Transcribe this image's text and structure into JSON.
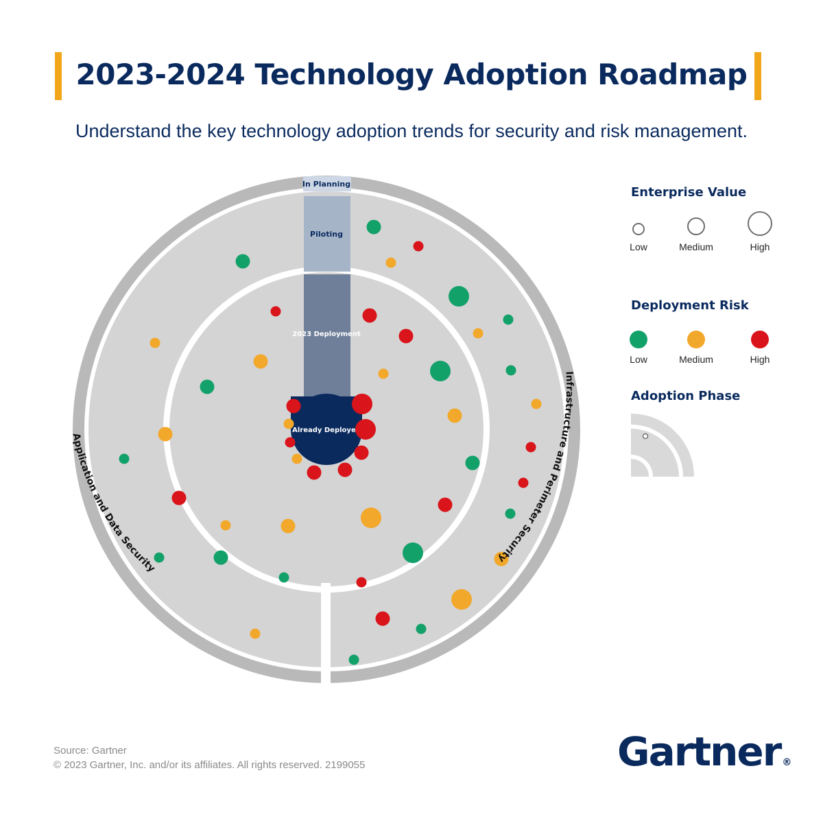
{
  "header": {
    "title": "2023-2024 Technology Adoption Roadmap",
    "subtitle": "Understand the key technology adoption trends for security and risk management."
  },
  "diagram": {
    "phases": {
      "in_planning": "In Planning",
      "piloting": "Piloting",
      "deployment_2023": "2023 Deployment",
      "already_deployed": "Already Deployed"
    },
    "segments": {
      "left": "Application and Data Security",
      "right": "Infrastructure and Perimeter Security"
    },
    "colors": {
      "low_risk": "#13a16a",
      "medium_risk": "#f2a82a",
      "high_risk": "#d9141a",
      "ring_gray": "#b9b9b9",
      "band_fill": "#d4d4d4",
      "piloting_fill": "#a6b4c8",
      "deployment_fill": "#6f7f9a",
      "deployed_fill": "#0a2a5e"
    },
    "markers": [
      {
        "phase": "planning",
        "side": "right",
        "risk": "low",
        "value": "medium"
      },
      {
        "phase": "planning",
        "side": "right",
        "risk": "high",
        "value": "low"
      },
      {
        "phase": "planning",
        "side": "right",
        "risk": "medium",
        "value": "low"
      },
      {
        "phase": "planning",
        "side": "right",
        "risk": "low",
        "value": "high"
      },
      {
        "phase": "planning",
        "side": "right",
        "risk": "low",
        "value": "low"
      },
      {
        "phase": "planning",
        "side": "right",
        "risk": "medium",
        "value": "low"
      },
      {
        "phase": "planning",
        "side": "right",
        "risk": "low",
        "value": "low"
      },
      {
        "phase": "planning",
        "side": "right",
        "risk": "medium",
        "value": "low"
      },
      {
        "phase": "planning",
        "side": "right",
        "risk": "high",
        "value": "low"
      },
      {
        "phase": "planning",
        "side": "right",
        "risk": "high",
        "value": "low"
      },
      {
        "phase": "planning",
        "side": "right",
        "risk": "low",
        "value": "low"
      },
      {
        "phase": "planning",
        "side": "right",
        "risk": "medium",
        "value": "medium"
      },
      {
        "phase": "planning",
        "side": "right",
        "risk": "medium",
        "value": "high"
      },
      {
        "phase": "planning",
        "side": "right",
        "risk": "high",
        "value": "medium"
      },
      {
        "phase": "planning",
        "side": "right",
        "risk": "low",
        "value": "low"
      },
      {
        "phase": "planning",
        "side": "right",
        "risk": "low",
        "value": "low"
      },
      {
        "phase": "planning",
        "side": "left",
        "risk": "low",
        "value": "medium"
      },
      {
        "phase": "planning",
        "side": "left",
        "risk": "medium",
        "value": "low"
      },
      {
        "phase": "planning",
        "side": "left",
        "risk": "medium",
        "value": "medium"
      },
      {
        "phase": "planning",
        "side": "left",
        "risk": "low",
        "value": "low"
      },
      {
        "phase": "planning",
        "side": "left",
        "risk": "high",
        "value": "medium"
      },
      {
        "phase": "planning",
        "side": "left",
        "risk": "low",
        "value": "low"
      },
      {
        "phase": "planning",
        "side": "left",
        "risk": "medium",
        "value": "low"
      },
      {
        "phase": "deployment",
        "side": "right",
        "risk": "high",
        "value": "medium"
      },
      {
        "phase": "deployment",
        "side": "right",
        "risk": "high",
        "value": "medium"
      },
      {
        "phase": "deployment",
        "side": "right",
        "risk": "medium",
        "value": "low"
      },
      {
        "phase": "deployment",
        "side": "right",
        "risk": "low",
        "value": "high"
      },
      {
        "phase": "deployment",
        "side": "right",
        "risk": "medium",
        "value": "medium"
      },
      {
        "phase": "deployment",
        "side": "right",
        "risk": "low",
        "value": "medium"
      },
      {
        "phase": "deployment",
        "side": "right",
        "risk": "high",
        "value": "medium"
      },
      {
        "phase": "deployment",
        "side": "right",
        "risk": "medium",
        "value": "high"
      },
      {
        "phase": "deployment",
        "side": "right",
        "risk": "low",
        "value": "high"
      },
      {
        "phase": "deployment",
        "side": "right",
        "risk": "high",
        "value": "low"
      },
      {
        "phase": "deployment",
        "side": "left",
        "risk": "high",
        "value": "low"
      },
      {
        "phase": "deployment",
        "side": "left",
        "risk": "medium",
        "value": "medium"
      },
      {
        "phase": "deployment",
        "side": "left",
        "risk": "low",
        "value": "medium"
      },
      {
        "phase": "deployment",
        "side": "left",
        "risk": "medium",
        "value": "low"
      },
      {
        "phase": "deployment",
        "side": "left",
        "risk": "medium",
        "value": "medium"
      },
      {
        "phase": "deployment",
        "side": "left",
        "risk": "low",
        "value": "medium"
      },
      {
        "phase": "deployment",
        "side": "left",
        "risk": "low",
        "value": "low"
      },
      {
        "phase": "deployed",
        "side": "left",
        "risk": "high",
        "value": "medium"
      },
      {
        "phase": "deployed",
        "side": "left",
        "risk": "medium",
        "value": "low"
      },
      {
        "phase": "deployed",
        "side": "left",
        "risk": "high",
        "value": "low"
      },
      {
        "phase": "deployed",
        "side": "left",
        "risk": "medium",
        "value": "low"
      },
      {
        "phase": "deployed",
        "side": "left",
        "risk": "high",
        "value": "medium"
      },
      {
        "phase": "deployed",
        "side": "right",
        "risk": "high",
        "value": "high"
      },
      {
        "phase": "deployed",
        "side": "right",
        "risk": "high",
        "value": "high"
      },
      {
        "phase": "deployed",
        "side": "right",
        "risk": "high",
        "value": "medium"
      },
      {
        "phase": "deployed",
        "side": "right",
        "risk": "high",
        "value": "medium"
      }
    ]
  },
  "legend": {
    "enterprise_value": {
      "heading": "Enterprise Value",
      "low": "Low",
      "medium": "Medium",
      "high": "High"
    },
    "deployment_risk": {
      "heading": "Deployment Risk",
      "low": "Low",
      "medium": "Medium",
      "high": "High"
    },
    "adoption_phase": {
      "heading": "Adoption Phase"
    }
  },
  "footer": {
    "source": "Source: Gartner",
    "copyright": "© 2023 Gartner, Inc. and/or its affiliates. All rights reserved. 2199055"
  },
  "brand": {
    "logo": "Gartner",
    "registered": "®"
  }
}
